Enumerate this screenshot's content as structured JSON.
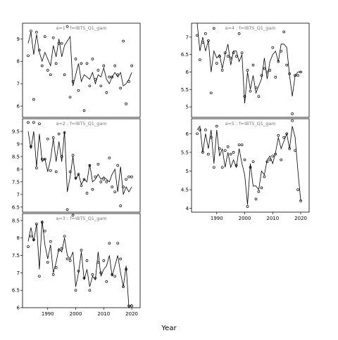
{
  "figure": {
    "xlabel": "Year"
  },
  "chart_data": [
    {
      "type": "line",
      "title": "a=1 : f=IBTS_Q1_gam",
      "xlim": [
        1981,
        2023
      ],
      "ylim": [
        5.5,
        9.7
      ],
      "yticks": [
        6,
        7,
        8,
        9
      ],
      "xticks": [],
      "line_x": [
        1983,
        1984,
        1985,
        1986,
        1987,
        1988,
        1989,
        1990,
        1991,
        1992,
        1993,
        1994,
        1995,
        1996,
        1997,
        1998,
        1999,
        2000,
        2001,
        2002,
        2003,
        2004,
        2005,
        2006,
        2007,
        2008,
        2009,
        2010,
        2011,
        2012,
        2013,
        2014,
        2015,
        2016,
        2017,
        2018,
        2019,
        2020
      ],
      "line_y": [
        8.8,
        9.3,
        8.3,
        9.2,
        8.4,
        8.0,
        8.4,
        8.1,
        7.8,
        8.7,
        8.2,
        9.0,
        8.2,
        8.7,
        8.9,
        9.1,
        6.9,
        7.4,
        7.9,
        7.1,
        7.4,
        7.3,
        7.2,
        7.5,
        7.0,
        7.4,
        7.3,
        7.7,
        7.2,
        7.0,
        7.3,
        7.5,
        7.3,
        7.5,
        6.9,
        7.0,
        7.2,
        7.5
      ],
      "points_x": [
        1983,
        1984,
        1985,
        1986,
        1987,
        1988,
        1989,
        1990,
        1991,
        1992,
        1993,
        1994,
        1995,
        1996,
        1997,
        1998,
        1999,
        2000,
        2001,
        2002,
        2003,
        2004,
        2005,
        2006,
        2007,
        2008,
        2009,
        2010,
        2011,
        2012,
        2013,
        2014,
        2015,
        2016,
        2017,
        2018,
        2019,
        2020
      ],
      "points_y": [
        8.25,
        9.35,
        6.3,
        9.3,
        8.5,
        7.8,
        9.1,
        7.6,
        7.4,
        9.05,
        7.9,
        8.8,
        8.8,
        7.4,
        9.55,
        6.4,
        7.1,
        8.1,
        6.7,
        7.9,
        5.8,
        7.9,
        6.9,
        8.1,
        7.2,
        7.6,
        6.9,
        7.8,
        6.6,
        7.3,
        7.3,
        7.8,
        7.4,
        6.8,
        8.9,
        6.1,
        7.1,
        7.8
      ]
    },
    {
      "type": "line",
      "title": "a=2 : f=IBTS_Q1_gam",
      "xlim": [
        1981,
        2023
      ],
      "ylim": [
        6.3,
        10.0
      ],
      "yticks": [
        6.5,
        7.0,
        7.5,
        8.0,
        8.5,
        9.0,
        9.5
      ],
      "xticks": [],
      "line_x": [
        1983,
        1984,
        1985,
        1986,
        1987,
        1988,
        1989,
        1990,
        1991,
        1992,
        1993,
        1994,
        1995,
        1996,
        1997,
        1998,
        1999,
        2000,
        2001,
        2002,
        2003,
        2004,
        2005,
        2006,
        2007,
        2008,
        2009,
        2010,
        2011,
        2012,
        2013,
        2014,
        2015,
        2016,
        2017,
        2018,
        2019,
        2020
      ],
      "line_y": [
        9.5,
        8.8,
        9.5,
        8.1,
        9.4,
        8.3,
        8.4,
        7.9,
        8.4,
        9.2,
        8.3,
        9.1,
        8.3,
        9.5,
        7.1,
        7.7,
        8.5,
        7.6,
        7.8,
        7.4,
        7.6,
        7.5,
        8.2,
        7.5,
        7.6,
        7.8,
        7.6,
        7.7,
        7.6,
        7.5,
        7.8,
        8.0,
        7.1,
        8.1,
        7.0,
        7.3,
        7.1,
        7.3
      ],
      "points_x": [
        1983,
        1984,
        1985,
        1986,
        1987,
        1988,
        1989,
        1990,
        1991,
        1992,
        1993,
        1994,
        1995,
        1996,
        1997,
        1998,
        1999,
        2000,
        2001,
        2002,
        2003,
        2004,
        2005,
        2006,
        2007,
        2008,
        2009,
        2010,
        2011,
        2012,
        2013,
        2014,
        2015,
        2016,
        2017,
        2018,
        2019,
        2020
      ],
      "points_y": [
        9.85,
        8.9,
        9.85,
        8.05,
        9.8,
        8.4,
        8.4,
        9.2,
        7.95,
        9.25,
        7.9,
        9.4,
        8.5,
        9.45,
        6.4,
        7.9,
        8.55,
        7.65,
        7.8,
        7.35,
        7.6,
        7.05,
        8.15,
        7.2,
        7.7,
        8.2,
        7.5,
        7.6,
        7.5,
        8.45,
        7.3,
        7.1,
        8.15,
        6.55,
        7.3,
        7.6,
        7.7,
        7.7
      ]
    },
    {
      "type": "line",
      "title": "a=3 : f=IBTS_Q1_gam",
      "xlim": [
        1981,
        2023
      ],
      "ylim": [
        6.0,
        8.7
      ],
      "yticks": [
        6.0,
        6.5,
        7.0,
        7.5,
        8.0,
        8.5
      ],
      "xticks": [
        1990,
        2000,
        2010,
        2020
      ],
      "line_x": [
        1983,
        1984,
        1985,
        1986,
        1987,
        1988,
        1989,
        1990,
        1991,
        1992,
        1993,
        1994,
        1995,
        1996,
        1997,
        1998,
        1999,
        2000,
        2001,
        2002,
        2003,
        2004,
        2005,
        2006,
        2007,
        2008,
        2009,
        2010,
        2011,
        2012,
        2013,
        2014,
        2015,
        2016,
        2017,
        2018,
        2019,
        2020
      ],
      "line_y": [
        7.9,
        8.3,
        7.9,
        8.4,
        7.1,
        8.5,
        7.8,
        7.4,
        7.8,
        7.0,
        7.3,
        7.7,
        7.6,
        8.0,
        7.5,
        7.4,
        7.6,
        6.6,
        7.0,
        7.6,
        6.8,
        7.1,
        6.6,
        6.9,
        6.8,
        7.6,
        6.9,
        7.1,
        7.2,
        7.5,
        6.9,
        7.2,
        7.5,
        7.0,
        6.6,
        7.2,
        6.0,
        6.1
      ],
      "points_x": [
        1983,
        1984,
        1985,
        1986,
        1987,
        1988,
        1989,
        1990,
        1991,
        1992,
        1993,
        1994,
        1995,
        1996,
        1997,
        1998,
        1999,
        2000,
        2001,
        2002,
        2003,
        2004,
        2005,
        2006,
        2007,
        2008,
        2009,
        2010,
        2011,
        2012,
        2013,
        2014,
        2015,
        2016,
        2017,
        2018,
        2019,
        2020
      ],
      "points_y": [
        7.75,
        8.05,
        7.95,
        8.4,
        6.9,
        8.45,
        8.2,
        7.3,
        7.9,
        6.95,
        7.15,
        7.65,
        7.7,
        8.05,
        7.4,
        7.35,
        8.65,
        6.5,
        7.05,
        7.65,
        6.85,
        7.35,
        6.5,
        6.95,
        6.85,
        7.3,
        7.0,
        7.35,
        6.75,
        7.85,
        6.95,
        6.9,
        7.85,
        7.4,
        6.6,
        7.1,
        6.05,
        6.05
      ]
    },
    {
      "type": "line",
      "title": "a=4 : f=IBTS_Q1_gam",
      "xlim": [
        1981,
        2023
      ],
      "ylim": [
        4.7,
        7.4
      ],
      "yticks": [
        5.0,
        5.5,
        6.0,
        6.5,
        7.0
      ],
      "xticks": [],
      "line_x": [
        1983,
        1984,
        1985,
        1986,
        1987,
        1988,
        1989,
        1990,
        1991,
        1992,
        1993,
        1994,
        1995,
        1996,
        1997,
        1998,
        1999,
        2000,
        2001,
        2002,
        2003,
        2004,
        2005,
        2006,
        2007,
        2008,
        2009,
        2010,
        2011,
        2012,
        2013,
        2014,
        2015,
        2016,
        2017,
        2018,
        2019,
        2020
      ],
      "line_y": [
        7.4,
        6.6,
        7.0,
        6.6,
        6.9,
        6.0,
        6.6,
        6.4,
        6.5,
        6.1,
        6.5,
        6.8,
        6.2,
        6.6,
        6.6,
        6.3,
        6.5,
        5.1,
        6.0,
        5.5,
        5.9,
        5.4,
        5.6,
        5.8,
        6.4,
        5.8,
        6.3,
        6.5,
        6.6,
        6.3,
        6.8,
        6.8,
        6.7,
        5.9,
        5.3,
        5.9,
        6.0,
        6.0
      ],
      "points_x": [
        1983,
        1984,
        1985,
        1986,
        1987,
        1988,
        1989,
        1990,
        1991,
        1992,
        1993,
        1994,
        1995,
        1996,
        1997,
        1998,
        1999,
        2000,
        2001,
        2002,
        2003,
        2004,
        2005,
        2006,
        2007,
        2008,
        2009,
        2010,
        2011,
        2012,
        2013,
        2014,
        2015,
        2016,
        2017,
        2018,
        2019,
        2020
      ],
      "points_y": [
        7.05,
        6.35,
        6.85,
        7.1,
        6.9,
        5.4,
        7.25,
        6.25,
        6.45,
        6.05,
        6.55,
        6.45,
        6.4,
        6.55,
        6.45,
        7.1,
        6.55,
        5.3,
        6.05,
        5.45,
        6.2,
        5.55,
        5.3,
        5.9,
        6.1,
        6.0,
        6.05,
        6.7,
        5.85,
        6.3,
        6.6,
        7.15,
        6.2,
        5.95,
        4.8,
        5.9,
        5.9,
        6.0
      ]
    },
    {
      "type": "line",
      "title": "a=5 : f=IBTS_Q1_gam",
      "xlim": [
        1981,
        2023
      ],
      "ylim": [
        3.9,
        6.4
      ],
      "yticks": [
        4.0,
        4.5,
        5.0,
        5.5,
        6.0
      ],
      "xticks": [
        1990,
        2000,
        2010,
        2020
      ],
      "line_x": [
        1983,
        1984,
        1985,
        1986,
        1987,
        1988,
        1989,
        1990,
        1991,
        1992,
        1993,
        1994,
        1995,
        1996,
        1997,
        1998,
        1999,
        2000,
        2001,
        2002,
        2003,
        2004,
        2005,
        2006,
        2007,
        2008,
        2009,
        2010,
        2011,
        2012,
        2013,
        2014,
        2015,
        2016,
        2017,
        2018,
        2019,
        2020
      ],
      "line_y": [
        6.1,
        6.2,
        5.5,
        6.0,
        5.6,
        6.1,
        5.2,
        6.1,
        5.4,
        5.6,
        5.1,
        5.5,
        5.1,
        5.3,
        5.1,
        5.6,
        5.2,
        4.9,
        4.1,
        5.2,
        4.6,
        4.6,
        4.5,
        5.0,
        4.9,
        5.3,
        5.4,
        5.2,
        5.5,
        5.9,
        5.6,
        5.8,
        6.0,
        5.6,
        6.2,
        5.9,
        5.0,
        4.2
      ],
      "points_x": [
        1983,
        1984,
        1985,
        1986,
        1987,
        1988,
        1989,
        1990,
        1991,
        1992,
        1993,
        1994,
        1995,
        1996,
        1997,
        1998,
        1999,
        2000,
        2001,
        2002,
        2003,
        2004,
        2005,
        2006,
        2007,
        2008,
        2009,
        2010,
        2011,
        2012,
        2013,
        2014,
        2015,
        2016,
        2017,
        2018,
        2019,
        2020
      ],
      "points_y": [
        6.0,
        6.1,
        5.5,
        6.1,
        5.45,
        5.9,
        5.1,
        6.2,
        5.6,
        5.1,
        5.55,
        5.65,
        5.45,
        5.5,
        5.15,
        5.7,
        5.7,
        5.3,
        4.05,
        5.1,
        5.25,
        4.25,
        4.45,
        4.55,
        4.85,
        5.25,
        5.3,
        5.4,
        5.45,
        5.95,
        5.3,
        5.9,
        6.0,
        5.6,
        6.35,
        5.55,
        4.5,
        4.2
      ]
    }
  ]
}
